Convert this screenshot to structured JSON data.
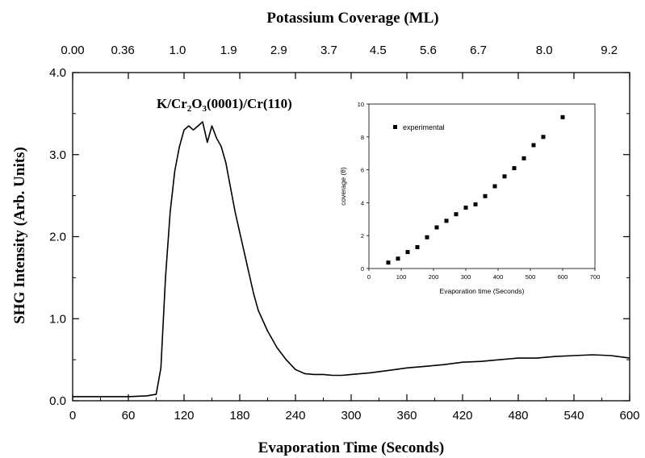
{
  "chart_data": [
    {
      "type": "line",
      "title": "K/Cr₂O₃(0001)/Cr(110)",
      "title_parts": {
        "a": "K/Cr",
        "b": "2",
        "c": "O",
        "d": "3",
        "e": "(0001)/Cr(110)"
      },
      "xlabel": "Evaporation Time (Seconds)",
      "ylabel": "SHG Intensity (Arb. Units)",
      "top_axis_label": "Potassium Coverage (ML)",
      "xlim": [
        0,
        600
      ],
      "ylim": [
        0,
        4
      ],
      "x_ticks": [
        "0",
        "60",
        "120",
        "180",
        "240",
        "300",
        "360",
        "420",
        "480",
        "540",
        "600"
      ],
      "y_ticks": [
        "0.0",
        "1.0",
        "2.0",
        "3.0",
        "4.0"
      ],
      "top_ticks": [
        {
          "label": "0.00",
          "t": 0
        },
        {
          "label": "0.36",
          "t": 54
        },
        {
          "label": "1.0",
          "t": 113
        },
        {
          "label": "1.9",
          "t": 168
        },
        {
          "label": "2.9",
          "t": 222
        },
        {
          "label": "3.7",
          "t": 276
        },
        {
          "label": "4.5",
          "t": 329
        },
        {
          "label": "5.6",
          "t": 383
        },
        {
          "label": "6.7",
          "t": 437
        },
        {
          "label": "8.0",
          "t": 508
        },
        {
          "label": "9.2",
          "t": 578
        }
      ],
      "series": [
        {
          "x": [
            0,
            20,
            40,
            60,
            80,
            90,
            95,
            100,
            105,
            110,
            115,
            120,
            125,
            130,
            135,
            140,
            145,
            150,
            155,
            160,
            165,
            170,
            175,
            180,
            185,
            190,
            195,
            200,
            210,
            220,
            230,
            240,
            250,
            260,
            270,
            280,
            290,
            300,
            320,
            340,
            360,
            380,
            400,
            420,
            440,
            460,
            480,
            500,
            520,
            540,
            560,
            580,
            600
          ],
          "y": [
            0.05,
            0.05,
            0.05,
            0.05,
            0.06,
            0.08,
            0.4,
            1.5,
            2.3,
            2.8,
            3.1,
            3.3,
            3.35,
            3.3,
            3.35,
            3.4,
            3.15,
            3.35,
            3.2,
            3.1,
            2.9,
            2.6,
            2.3,
            2.05,
            1.8,
            1.55,
            1.3,
            1.1,
            0.85,
            0.65,
            0.5,
            0.38,
            0.33,
            0.32,
            0.32,
            0.31,
            0.31,
            0.32,
            0.34,
            0.37,
            0.4,
            0.42,
            0.44,
            0.47,
            0.48,
            0.5,
            0.52,
            0.52,
            0.54,
            0.55,
            0.56,
            0.55,
            0.52
          ]
        }
      ]
    },
    {
      "type": "scatter",
      "xlabel": "Evaporation time (Seconds)",
      "ylabel": "coverage (θ)",
      "xlim": [
        0,
        700
      ],
      "ylim": [
        0,
        10
      ],
      "x_ticks": [
        "0",
        "100",
        "200",
        "300",
        "400",
        "500",
        "600",
        "700"
      ],
      "y_ticks": [
        "0",
        "2",
        "4",
        "6",
        "8",
        "10"
      ],
      "legend": "top-left",
      "series": [
        {
          "name": "experimental",
          "x": [
            60,
            90,
            120,
            150,
            180,
            210,
            240,
            270,
            300,
            330,
            360,
            390,
            420,
            450,
            480,
            510,
            540,
            600
          ],
          "y": [
            0.36,
            0.6,
            1.0,
            1.3,
            1.9,
            2.5,
            2.9,
            3.3,
            3.7,
            3.9,
            4.4,
            5.0,
            5.6,
            6.1,
            6.7,
            7.5,
            8.0,
            9.2
          ]
        }
      ]
    }
  ]
}
